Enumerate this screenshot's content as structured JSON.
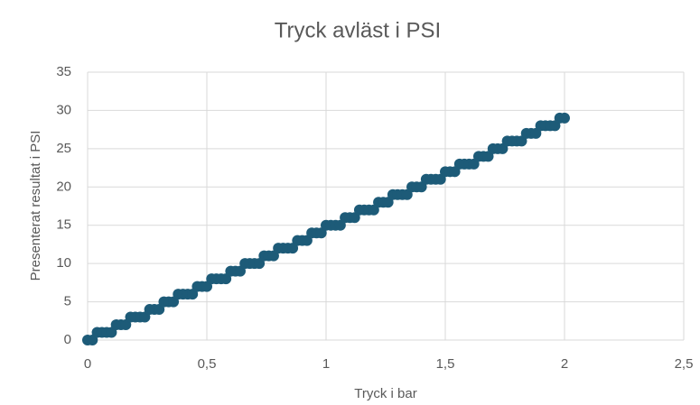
{
  "chart_data": {
    "type": "scatter",
    "title": "Tryck avläst i PSI",
    "x_label": "Tryck i bar",
    "y_label": "Presenterat resultat i PSI",
    "series": [
      {
        "color": "#1d5b78",
        "x": [
          0,
          0.02,
          0.04,
          0.06,
          0.08,
          0.1,
          0.12,
          0.14,
          0.16,
          0.18,
          0.2,
          0.22,
          0.24,
          0.26,
          0.28,
          0.3,
          0.32,
          0.34,
          0.36,
          0.38,
          0.4,
          0.42,
          0.44,
          0.46,
          0.48,
          0.5,
          0.52,
          0.54,
          0.56,
          0.58,
          0.6,
          0.62,
          0.64,
          0.66,
          0.68,
          0.7,
          0.72,
          0.74,
          0.76,
          0.78,
          0.8,
          0.82,
          0.84,
          0.86,
          0.88,
          0.9,
          0.92,
          0.94,
          0.96,
          0.98,
          1,
          1.02,
          1.04,
          1.06,
          1.08,
          1.1,
          1.12,
          1.14,
          1.16,
          1.18,
          1.2,
          1.22,
          1.24,
          1.26,
          1.28,
          1.3,
          1.32,
          1.34,
          1.36,
          1.38,
          1.4,
          1.42,
          1.44,
          1.46,
          1.48,
          1.5,
          1.52,
          1.54,
          1.56,
          1.58,
          1.6,
          1.62,
          1.64,
          1.66,
          1.68,
          1.7,
          1.72,
          1.74,
          1.76,
          1.78,
          1.8,
          1.82,
          1.84,
          1.86,
          1.88,
          1.9,
          1.92,
          1.94,
          1.96,
          1.98,
          2
        ],
        "values": [
          0,
          0,
          1,
          1,
          1,
          1,
          2,
          2,
          2,
          3,
          3,
          3,
          3,
          4,
          4,
          4,
          5,
          5,
          5,
          6,
          6,
          6,
          6,
          7,
          7,
          7,
          8,
          8,
          8,
          8,
          9,
          9,
          9,
          10,
          10,
          10,
          10,
          11,
          11,
          11,
          12,
          12,
          12,
          12,
          13,
          13,
          13,
          14,
          14,
          14,
          15,
          15,
          15,
          15,
          16,
          16,
          16,
          17,
          17,
          17,
          17,
          18,
          18,
          18,
          19,
          19,
          19,
          19,
          20,
          20,
          20,
          21,
          21,
          21,
          21,
          22,
          22,
          22,
          23,
          23,
          23,
          23,
          24,
          24,
          24,
          25,
          25,
          25,
          26,
          26,
          26,
          26,
          27,
          27,
          27,
          28,
          28,
          28,
          28,
          29,
          29
        ]
      }
    ],
    "xlim": [
      0,
      2.5
    ],
    "xticks": [
      0,
      {
        "value": 0.5,
        "label": "0,5"
      },
      1,
      {
        "value": 1.5,
        "label": "1,5"
      },
      2,
      {
        "value": 2.5,
        "label": "2,5"
      }
    ],
    "ylim": [
      0,
      35
    ],
    "yticks": [
      0,
      5,
      10,
      15,
      20,
      25,
      30,
      35
    ],
    "grid": true
  }
}
